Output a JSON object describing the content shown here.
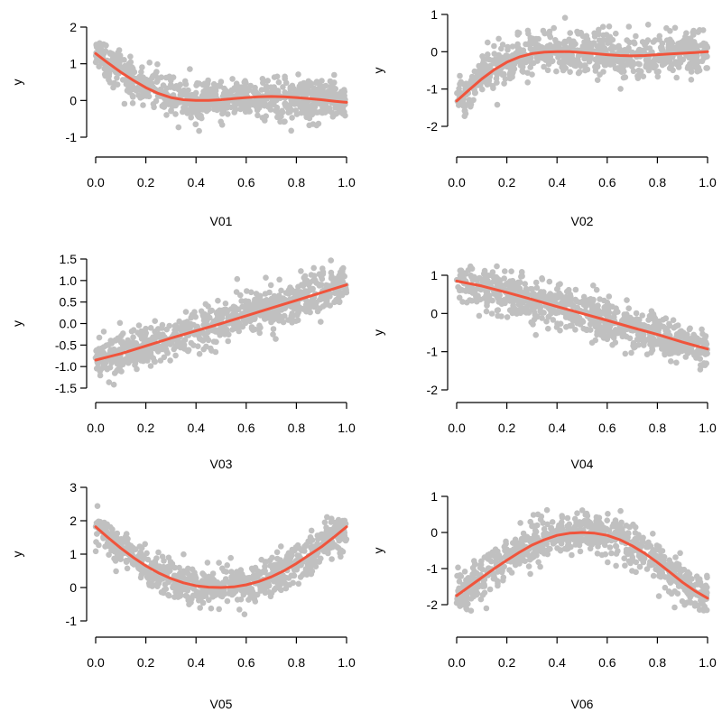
{
  "colors": {
    "points": "#c0c0c0",
    "smooth_line": "#f0543c",
    "axis": "#000000",
    "background": "#ffffff"
  },
  "chart_data": [
    {
      "type": "scatter",
      "xlabel": "V01",
      "ylabel": "y",
      "xlim": [
        0,
        1
      ],
      "ylim": [
        -1.3,
        2.45
      ],
      "xticks": [
        "0.0",
        "0.2",
        "0.4",
        "0.6",
        "0.8",
        "1.0"
      ],
      "yticks": [
        "-1",
        "0",
        "1",
        "2"
      ],
      "grid": false,
      "point_cloud": {
        "count": 800,
        "noise_sd": 0.28
      },
      "smooth": {
        "x": [
          0.0,
          0.05,
          0.1,
          0.15,
          0.2,
          0.25,
          0.3,
          0.35,
          0.4,
          0.45,
          0.5,
          0.55,
          0.6,
          0.65,
          0.7,
          0.75,
          0.8,
          0.85,
          0.9,
          0.95,
          1.0
        ],
        "y": [
          1.28,
          1.02,
          0.77,
          0.55,
          0.35,
          0.19,
          0.08,
          0.02,
          0.0,
          0.0,
          0.02,
          0.05,
          0.08,
          0.1,
          0.11,
          0.1,
          0.08,
          0.05,
          0.02,
          -0.02,
          -0.05
        ]
      }
    },
    {
      "type": "scatter",
      "xlabel": "V02",
      "ylabel": "y",
      "xlim": [
        0,
        1
      ],
      "ylim": [
        -2.65,
        1.1
      ],
      "xticks": [
        "0.0",
        "0.2",
        "0.4",
        "0.6",
        "0.8",
        "1.0"
      ],
      "yticks": [
        "-2",
        "-1",
        "0",
        "1"
      ],
      "grid": false,
      "point_cloud": {
        "count": 800,
        "noise_sd": 0.28
      },
      "smooth": {
        "x": [
          0.0,
          0.05,
          0.1,
          0.15,
          0.2,
          0.25,
          0.3,
          0.35,
          0.4,
          0.45,
          0.5,
          0.55,
          0.6,
          0.65,
          0.7,
          0.75,
          0.8,
          0.85,
          0.9,
          0.95,
          1.0
        ],
        "y": [
          -1.32,
          -1.02,
          -0.73,
          -0.48,
          -0.28,
          -0.14,
          -0.05,
          -0.01,
          0.0,
          0.0,
          -0.02,
          -0.05,
          -0.08,
          -0.1,
          -0.11,
          -0.1,
          -0.08,
          -0.06,
          -0.04,
          -0.02,
          0.0
        ]
      }
    },
    {
      "type": "scatter",
      "xlabel": "V03",
      "ylabel": "y",
      "xlim": [
        0,
        1
      ],
      "ylim": [
        -1.55,
        1.65
      ],
      "xticks": [
        "0.0",
        "0.2",
        "0.4",
        "0.6",
        "0.8",
        "1.0"
      ],
      "yticks": [
        "-1.5",
        "-1.0",
        "-0.5",
        "0.0",
        "0.5",
        "1.0",
        "1.5"
      ],
      "grid": false,
      "point_cloud": {
        "count": 800,
        "noise_sd": 0.25
      },
      "smooth": {
        "x": [
          0.0,
          0.1,
          0.2,
          0.3,
          0.4,
          0.5,
          0.6,
          0.7,
          0.8,
          0.9,
          1.0
        ],
        "y": [
          -0.85,
          -0.7,
          -0.52,
          -0.34,
          -0.17,
          0.0,
          0.18,
          0.36,
          0.54,
          0.72,
          0.9
        ]
      }
    },
    {
      "type": "scatter",
      "xlabel": "V04",
      "ylabel": "y",
      "xlim": [
        0,
        1
      ],
      "ylim": [
        -2.0,
        1.6
      ],
      "xticks": [
        "0.0",
        "0.2",
        "0.4",
        "0.6",
        "0.8",
        "1.0"
      ],
      "yticks": [
        "-2",
        "-1",
        "0",
        "1"
      ],
      "grid": false,
      "point_cloud": {
        "count": 800,
        "noise_sd": 0.28
      },
      "smooth": {
        "x": [
          0.0,
          0.1,
          0.2,
          0.3,
          0.4,
          0.5,
          0.6,
          0.7,
          0.8,
          0.9,
          1.0
        ],
        "y": [
          0.85,
          0.72,
          0.55,
          0.37,
          0.18,
          0.0,
          -0.18,
          -0.37,
          -0.55,
          -0.75,
          -0.93
        ]
      }
    },
    {
      "type": "scatter",
      "xlabel": "V05",
      "ylabel": "y",
      "xlim": [
        0,
        1
      ],
      "ylim": [
        -1.25,
        2.95
      ],
      "xticks": [
        "0.0",
        "0.2",
        "0.4",
        "0.6",
        "0.8",
        "1.0"
      ],
      "yticks": [
        "-1",
        "0",
        "1",
        "2",
        "3"
      ],
      "grid": false,
      "point_cloud": {
        "count": 800,
        "noise_sd": 0.28
      },
      "smooth": {
        "x": [
          0.0,
          0.05,
          0.1,
          0.15,
          0.2,
          0.25,
          0.3,
          0.35,
          0.4,
          0.45,
          0.5,
          0.55,
          0.6,
          0.65,
          0.7,
          0.75,
          0.8,
          0.85,
          0.9,
          0.95,
          1.0
        ],
        "y": [
          1.82,
          1.49,
          1.18,
          0.9,
          0.65,
          0.44,
          0.27,
          0.14,
          0.05,
          0.01,
          0.0,
          0.02,
          0.08,
          0.18,
          0.32,
          0.5,
          0.72,
          0.97,
          1.22,
          1.51,
          1.82
        ]
      }
    },
    {
      "type": "scatter",
      "xlabel": "V06",
      "ylabel": "y",
      "xlim": [
        0,
        1
      ],
      "ylim": [
        -2.75,
        1.1
      ],
      "xticks": [
        "0.0",
        "0.2",
        "0.4",
        "0.6",
        "0.8",
        "1.0"
      ],
      "yticks": [
        "-2",
        "-1",
        "0",
        "1"
      ],
      "grid": false,
      "point_cloud": {
        "count": 800,
        "noise_sd": 0.28
      },
      "smooth": {
        "x": [
          0.0,
          0.05,
          0.1,
          0.15,
          0.2,
          0.25,
          0.3,
          0.35,
          0.4,
          0.45,
          0.5,
          0.55,
          0.6,
          0.65,
          0.7,
          0.75,
          0.8,
          0.85,
          0.9,
          0.95,
          1.0
        ],
        "y": [
          -1.75,
          -1.5,
          -1.25,
          -1.0,
          -0.77,
          -0.55,
          -0.35,
          -0.2,
          -0.08,
          -0.02,
          0.0,
          -0.02,
          -0.08,
          -0.2,
          -0.37,
          -0.58,
          -0.83,
          -1.1,
          -1.38,
          -1.62,
          -1.82
        ]
      }
    }
  ]
}
